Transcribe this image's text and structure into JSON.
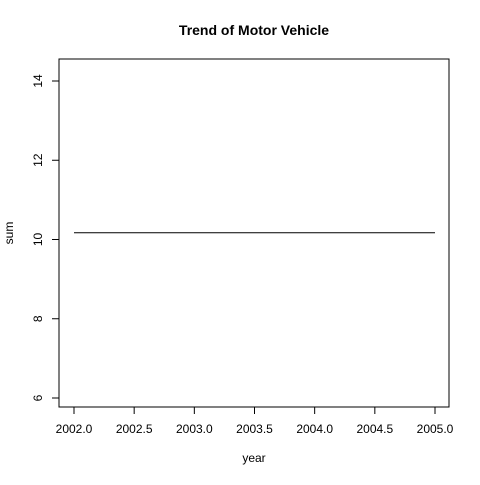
{
  "chart_data": {
    "type": "line",
    "title": "Trend of Motor Vehicle",
    "xlabel": "year",
    "ylabel": "sum",
    "xlim": [
      2002.0,
      2005.0
    ],
    "ylim": [
      6,
      14
    ],
    "x_ticks": [
      2002.0,
      2002.5,
      2003.0,
      2003.5,
      2004.0,
      2004.5,
      2005.0
    ],
    "x_tick_labels": [
      "2002.0",
      "2002.5",
      "2003.0",
      "2003.5",
      "2004.0",
      "2004.5",
      "2005.0"
    ],
    "y_ticks": [
      6,
      8,
      10,
      12,
      14
    ],
    "y_tick_labels": [
      "6",
      "8",
      "10",
      "12",
      "14"
    ],
    "grid": false,
    "series": [
      {
        "x": [
          2002,
          2003,
          2004,
          2005
        ],
        "y": [
          10.17,
          10.17,
          10.17,
          10.17
        ],
        "color": "#000000"
      }
    ]
  }
}
